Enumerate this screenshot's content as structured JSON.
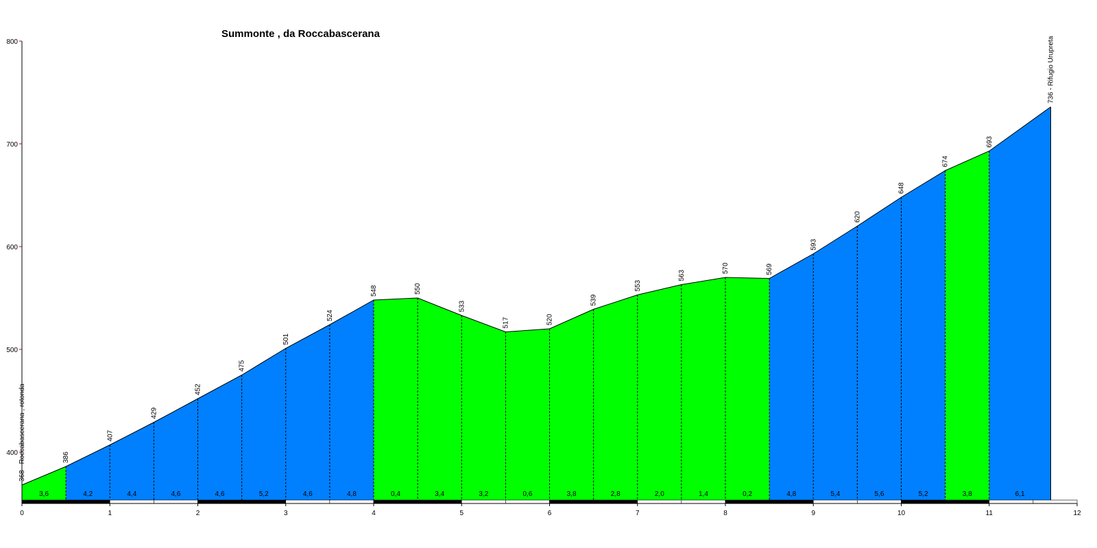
{
  "chart_data": {
    "type": "area",
    "title": "Summonte , da Roccabascerana",
    "xlabel": "",
    "ylabel": "",
    "xlim": [
      0,
      12
    ],
    "ylim": [
      350,
      800
    ],
    "x_ticks": [
      "0",
      "1",
      "2",
      "3",
      "4",
      "5",
      "6",
      "7",
      "8",
      "9",
      "10",
      "11",
      "12"
    ],
    "y_ticks": [
      "400",
      "500",
      "600",
      "700",
      "800"
    ],
    "colors": {
      "even_segment": "#00ff00",
      "odd_segment": "#0080ff",
      "outline": "#000000"
    },
    "points": [
      {
        "x": 0.0,
        "y": 368
      },
      {
        "x": 0.5,
        "y": 386
      },
      {
        "x": 1.0,
        "y": 407
      },
      {
        "x": 1.5,
        "y": 429
      },
      {
        "x": 2.0,
        "y": 452
      },
      {
        "x": 2.5,
        "y": 475
      },
      {
        "x": 3.0,
        "y": 501
      },
      {
        "x": 3.5,
        "y": 524
      },
      {
        "x": 4.0,
        "y": 548
      },
      {
        "x": 4.5,
        "y": 550
      },
      {
        "x": 5.0,
        "y": 533
      },
      {
        "x": 5.5,
        "y": 517
      },
      {
        "x": 6.0,
        "y": 520
      },
      {
        "x": 6.5,
        "y": 539
      },
      {
        "x": 7.0,
        "y": 553
      },
      {
        "x": 7.5,
        "y": 563
      },
      {
        "x": 8.0,
        "y": 570
      },
      {
        "x": 8.5,
        "y": 569
      },
      {
        "x": 9.0,
        "y": 593
      },
      {
        "x": 9.5,
        "y": 620
      },
      {
        "x": 10.0,
        "y": 648
      },
      {
        "x": 10.5,
        "y": 674
      },
      {
        "x": 11.0,
        "y": 693
      },
      {
        "x": 11.7,
        "y": 736
      }
    ],
    "point_labels": [
      "368 - Roccabascerana , rotonda",
      "386",
      "407",
      "429",
      "452",
      "475",
      "501",
      "524",
      "548",
      "550",
      "533",
      "517",
      "520",
      "539",
      "553",
      "563",
      "570",
      "569",
      "593",
      "620",
      "648",
      "674",
      "693",
      "736 - Rifugio Urupreta"
    ],
    "segment_gradients": [
      "3,6",
      "4,2",
      "4,4",
      "4,6",
      "4,6",
      "5,2",
      "4,6",
      "4,8",
      "0,4",
      "3,4",
      "3,2",
      "0,6",
      "3,8",
      "2,8",
      "2,0",
      "1,4",
      "0,2",
      "4,8",
      "5,4",
      "5,6",
      "5,2",
      "3,8",
      "6,1"
    ],
    "segment_colors": [
      "green",
      "blue",
      "blue",
      "blue",
      "blue",
      "blue",
      "blue",
      "blue",
      "green",
      "green",
      "green",
      "green",
      "green",
      "green",
      "green",
      "green",
      "green",
      "blue",
      "blue",
      "blue",
      "blue",
      "green",
      "blue"
    ]
  }
}
